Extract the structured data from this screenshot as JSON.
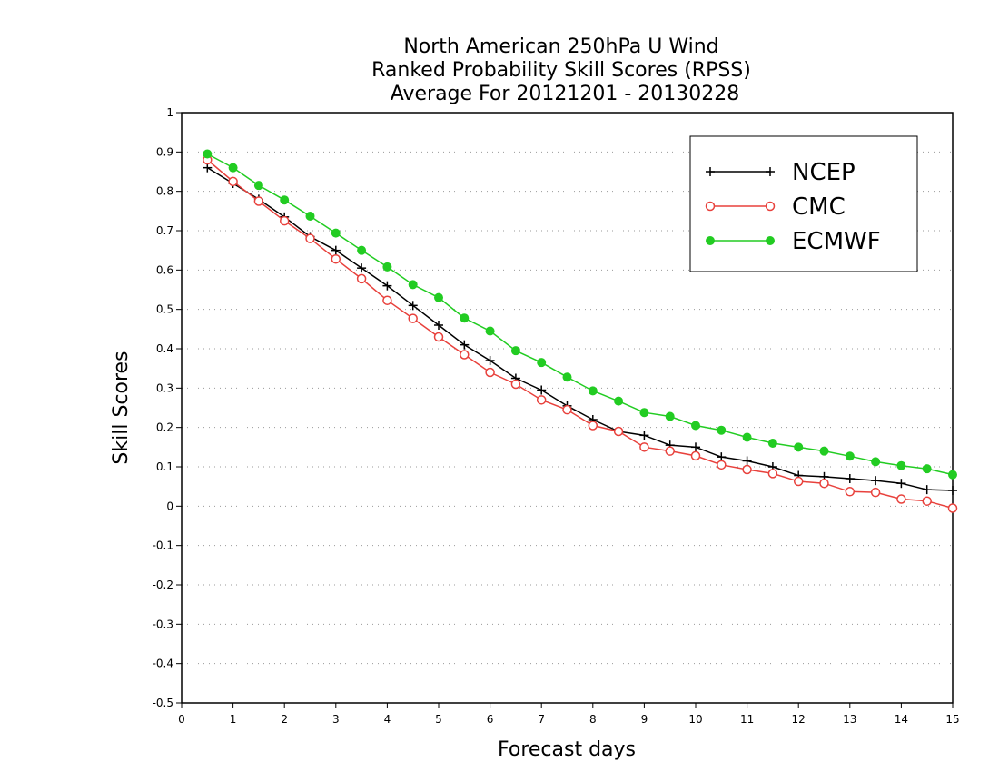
{
  "chart_data": {
    "type": "line",
    "title": [
      "North American 250hPa U Wind",
      "Ranked Probability Skill Scores (RPSS)",
      "Average For 20121201 - 20130228"
    ],
    "xlabel": "Forecast days",
    "ylabel": "Skill Scores",
    "xlim": [
      0,
      15
    ],
    "ylim": [
      -0.5,
      1
    ],
    "xticks": [
      "0",
      "1",
      "2",
      "3",
      "4",
      "5",
      "6",
      "7",
      "8",
      "9",
      "10",
      "11",
      "12",
      "13",
      "14",
      "15"
    ],
    "yticks": [
      "-0.5",
      "-0.4",
      "-0.3",
      "-0.2",
      "-0.1",
      "0",
      "0.1",
      "0.2",
      "0.3",
      "0.4",
      "0.5",
      "0.6",
      "0.7",
      "0.8",
      "0.9",
      "1"
    ],
    "grid": "horizontal-dotted",
    "legend_position": "top-right",
    "x": [
      0.5,
      1,
      1.5,
      2,
      2.5,
      3,
      3.5,
      4,
      4.5,
      5,
      5.5,
      6,
      6.5,
      7,
      7.5,
      8,
      8.5,
      9,
      9.5,
      10,
      10.5,
      11,
      11.5,
      12,
      12.5,
      13,
      13.5,
      14,
      14.5,
      15
    ],
    "series": [
      {
        "name": "NCEP",
        "color": "#000000",
        "marker": "plus",
        "values": [
          0.86,
          0.82,
          0.78,
          0.735,
          0.685,
          0.65,
          0.605,
          0.56,
          0.51,
          0.46,
          0.41,
          0.37,
          0.325,
          0.295,
          0.255,
          0.22,
          0.19,
          0.18,
          0.155,
          0.15,
          0.125,
          0.115,
          0.1,
          0.078,
          0.075,
          0.07,
          0.065,
          0.058,
          0.042,
          0.04
        ]
      },
      {
        "name": "CMC",
        "color": "#e8413c",
        "marker": "open-circle",
        "values": [
          0.88,
          0.825,
          0.775,
          0.725,
          0.68,
          0.628,
          0.578,
          0.523,
          0.477,
          0.43,
          0.385,
          0.34,
          0.31,
          0.27,
          0.245,
          0.205,
          0.19,
          0.15,
          0.14,
          0.128,
          0.105,
          0.093,
          0.083,
          0.063,
          0.058,
          0.037,
          0.035,
          0.018,
          0.013,
          -0.005
        ]
      },
      {
        "name": "ECMWF",
        "color": "#22cc22",
        "marker": "filled-circle",
        "values": [
          0.895,
          0.86,
          0.815,
          0.778,
          0.737,
          0.694,
          0.65,
          0.608,
          0.563,
          0.53,
          0.478,
          0.445,
          0.395,
          0.365,
          0.328,
          0.293,
          0.267,
          0.238,
          0.228,
          0.205,
          0.193,
          0.175,
          0.16,
          0.15,
          0.14,
          0.127,
          0.113,
          0.103,
          0.095,
          0.08
        ]
      }
    ]
  }
}
